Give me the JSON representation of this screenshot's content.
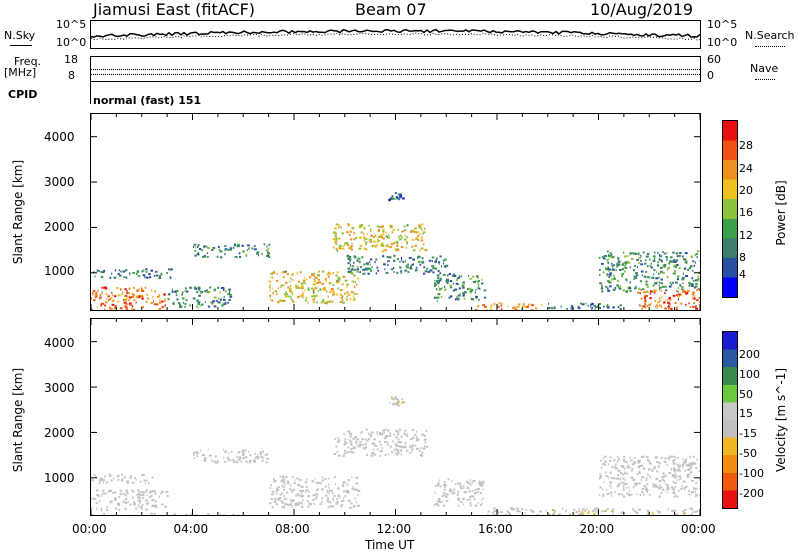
{
  "header": {
    "station": "Jiamusi East (fitACF)",
    "beam": "Beam 07",
    "date": "10/Aug/2019"
  },
  "noise_panel": {
    "left_label": "N.Sky",
    "right_label": "N.Search",
    "left_ticks": [
      "10^5",
      "10^0"
    ],
    "right_ticks": [
      "10^5",
      "10^0"
    ]
  },
  "freq_panel": {
    "left_label_top": "Freq.",
    "left_label_bottom": "[MHz]",
    "right_label": "Nave",
    "left_ticks": [
      "18",
      "8"
    ],
    "right_ticks": [
      "60",
      "0"
    ]
  },
  "cpid_panel": {
    "label": "CPID",
    "mode": "normal (fast) 151"
  },
  "x_axis": {
    "label": "Time UT",
    "ticks": [
      "00:00",
      "04:00",
      "08:00",
      "12:00",
      "16:00",
      "20:00",
      "00:00"
    ]
  },
  "colors": {
    "power_scale": [
      "#0000ff",
      "#2a4fa0",
      "#3c7d6e",
      "#3aa04a",
      "#8ac33c",
      "#f0c020",
      "#f09020",
      "#f05010",
      "#e81010"
    ],
    "velocity_scale": [
      "#e81010",
      "#f05a10",
      "#f08c10",
      "#f0b820",
      "#c0c0c0",
      "#c8c8c8",
      "#6cc83c",
      "#3a8a4a",
      "#2a5aa0",
      "#1a1ad0"
    ]
  },
  "chart_data": [
    {
      "type": "heatmap",
      "title": "",
      "ylabel": "Slant Range [km]",
      "xlabel": "",
      "ylim": [
        180,
        4500
      ],
      "yticks": [
        "1000",
        "2000",
        "3000",
        "4000"
      ],
      "colorbar": {
        "label": "Power [dB]",
        "ticks": [
          "4",
          "8",
          "12",
          "16",
          "20",
          "24",
          "28"
        ],
        "range": [
          0,
          30
        ]
      },
      "regions": [
        {
          "t0": 0.0,
          "t1": 3.0,
          "r0": 200,
          "r1": 700,
          "level": 24
        },
        {
          "t0": 0.0,
          "t1": 3.2,
          "r0": 900,
          "r1": 1100,
          "level": 8
        },
        {
          "t0": 3.0,
          "t1": 5.5,
          "r0": 250,
          "r1": 700,
          "level": 10
        },
        {
          "t0": 4.0,
          "t1": 7.0,
          "r0": 1350,
          "r1": 1650,
          "level": 10
        },
        {
          "t0": 7.0,
          "t1": 10.5,
          "r0": 350,
          "r1": 1050,
          "level": 18
        },
        {
          "t0": 9.5,
          "t1": 13.2,
          "r0": 1500,
          "r1": 2100,
          "level": 18
        },
        {
          "t0": 11.7,
          "t1": 12.3,
          "r0": 2600,
          "r1": 2800,
          "level": 6
        },
        {
          "t0": 10.0,
          "t1": 14.0,
          "r0": 1000,
          "r1": 1400,
          "level": 8
        },
        {
          "t0": 13.5,
          "t1": 15.5,
          "r0": 400,
          "r1": 1000,
          "level": 10
        },
        {
          "t0": 15.0,
          "t1": 18.0,
          "r0": 200,
          "r1": 350,
          "level": 22
        },
        {
          "t0": 18.0,
          "t1": 21.0,
          "r0": 200,
          "r1": 350,
          "level": 8
        },
        {
          "t0": 20.0,
          "t1": 24.0,
          "r0": 600,
          "r1": 1500,
          "level": 10
        },
        {
          "t0": 21.5,
          "t1": 24.0,
          "r0": 200,
          "r1": 650,
          "level": 24
        }
      ]
    },
    {
      "type": "heatmap",
      "title": "",
      "ylabel": "Slant Range [km]",
      "xlabel": "Time UT",
      "ylim": [
        180,
        4500
      ],
      "yticks": [
        "1000",
        "2000",
        "3000",
        "4000"
      ],
      "colorbar": {
        "label": "Velocity [m s^-1]",
        "ticks": [
          "200",
          "100",
          "50",
          "15",
          "-15",
          "-50",
          "-100",
          "-200"
        ]
      },
      "regions": [
        {
          "t0": 0.0,
          "t1": 3.0,
          "r0": 300,
          "r1": 750,
          "level": 0
        },
        {
          "t0": 0.0,
          "t1": 2.5,
          "r0": 900,
          "r1": 1100,
          "level": 0
        },
        {
          "t0": 4.0,
          "t1": 7.0,
          "r0": 1350,
          "r1": 1650,
          "level": 0
        },
        {
          "t0": 7.0,
          "t1": 10.5,
          "r0": 350,
          "r1": 1050,
          "level": 0
        },
        {
          "t0": 9.5,
          "t1": 13.2,
          "r0": 1500,
          "r1": 2100,
          "level": 0
        },
        {
          "t0": 11.7,
          "t1": 12.3,
          "r0": 2600,
          "r1": 2800,
          "level": -40
        },
        {
          "t0": 13.5,
          "t1": 15.5,
          "r0": 400,
          "r1": 1000,
          "level": 0
        },
        {
          "t0": 15.5,
          "t1": 18.0,
          "r0": 200,
          "r1": 350,
          "level": -30
        },
        {
          "t0": 18.0,
          "t1": 24.0,
          "r0": 200,
          "r1": 350,
          "level": -40
        },
        {
          "t0": 20.0,
          "t1": 24.0,
          "r0": 600,
          "r1": 1500,
          "level": 0
        },
        {
          "t0": 0.0,
          "t1": 6.0,
          "r0": 180,
          "r1": 230,
          "level": 30
        }
      ]
    }
  ]
}
